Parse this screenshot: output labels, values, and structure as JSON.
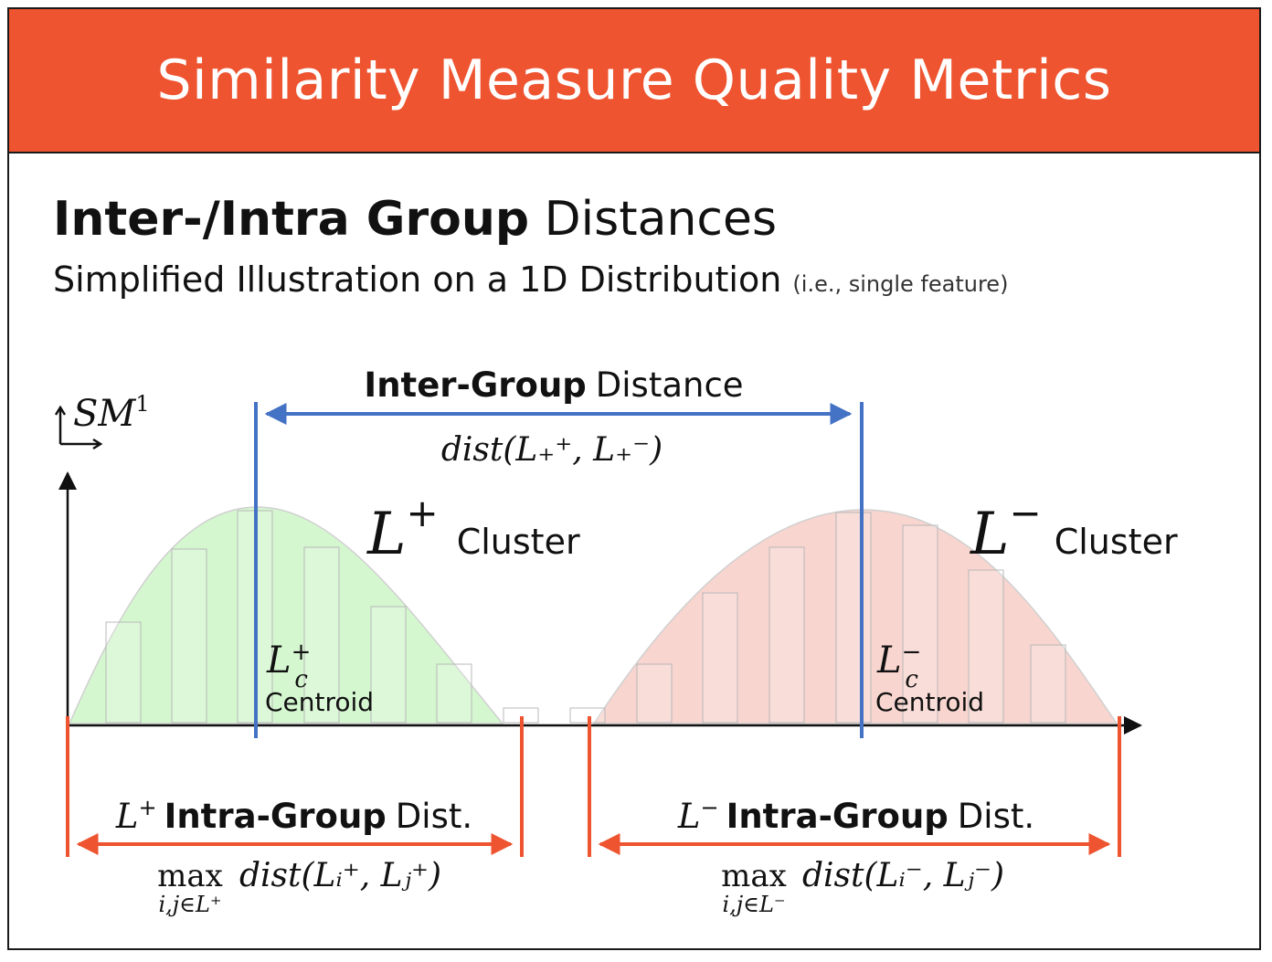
{
  "banner": {
    "title": "Similarity Measure Quality Metrics",
    "color": "#ee5430"
  },
  "heading": {
    "bold": "Inter-/Intra Group",
    "rest": "Distances"
  },
  "subheading": {
    "main": "Simplified Illustration on a 1D Distribution",
    "note": "(i.e., single feature)"
  },
  "axis_label": {
    "base": "SM",
    "sup": "1"
  },
  "inter": {
    "title_bold": "Inter-Group",
    "title_rest": "Distance",
    "formula": "dist(L₊⁺, L₊⁻)",
    "color": "#4472c4"
  },
  "clusters": {
    "positive": {
      "symbol": "L",
      "sign": "+",
      "label": "Cluster",
      "centroid_label": "Centroid",
      "fill": "#d4f7cf",
      "intra_bold": "Intra-Group",
      "intra_rest": "Dist.",
      "intra_formula_op": "max",
      "intra_formula_sub": "i,j∈L⁺",
      "intra_formula_body": "dist(Lᵢ⁺, Lⱼ⁺)"
    },
    "negative": {
      "symbol": "L",
      "sign": "−",
      "label": "Cluster",
      "centroid_label": "Centroid",
      "fill": "#f8d5cf",
      "intra_bold": "Intra-Group",
      "intra_rest": "Dist.",
      "intra_formula_op": "max",
      "intra_formula_sub": "i,j∈L⁻",
      "intra_formula_body": "dist(Lᵢ⁻, Lⱼ⁻)"
    }
  },
  "intra_color": "#ee5430"
}
